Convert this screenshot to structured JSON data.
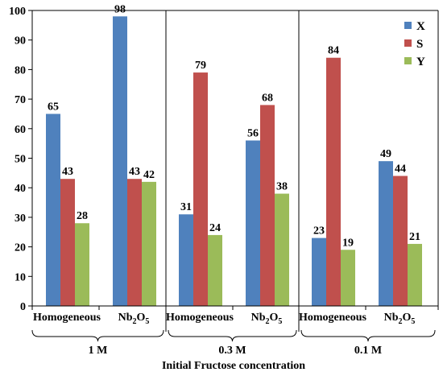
{
  "chart_data": {
    "type": "bar",
    "xlabel": "Initial Fructose  concentration",
    "ylim": [
      0,
      100
    ],
    "yticks": [
      0,
      10,
      20,
      30,
      40,
      50,
      60,
      70,
      80,
      90,
      100
    ],
    "legend_position": "top-right",
    "groups": [
      {
        "label": "1 M",
        "categories": [
          {
            "name": "Homogeneous",
            "values": [
              65,
              43,
              28
            ]
          },
          {
            "name_base": "Nb",
            "name_sub1": "2",
            "name_mid": "O",
            "name_sub2": "5",
            "values": [
              98,
              43,
              42
            ]
          }
        ]
      },
      {
        "label": "0.3 M",
        "categories": [
          {
            "name": "Homogeneous",
            "values": [
              31,
              79,
              24
            ]
          },
          {
            "name_base": "Nb",
            "name_sub1": "2",
            "name_mid": "O",
            "name_sub2": "5",
            "values": [
              56,
              68,
              38
            ]
          }
        ]
      },
      {
        "label": "0.1 M",
        "categories": [
          {
            "name": "Homogeneous",
            "values": [
              23,
              84,
              19
            ]
          },
          {
            "name_base": "Nb",
            "name_sub1": "2",
            "name_mid": "O",
            "name_sub2": "5",
            "values": [
              49,
              44,
              21
            ]
          }
        ]
      }
    ],
    "series": [
      {
        "name": "X",
        "color": "#4f81bd"
      },
      {
        "name": "S",
        "color": "#c0504d"
      },
      {
        "name": "Y",
        "color": "#9bbb59"
      }
    ]
  }
}
